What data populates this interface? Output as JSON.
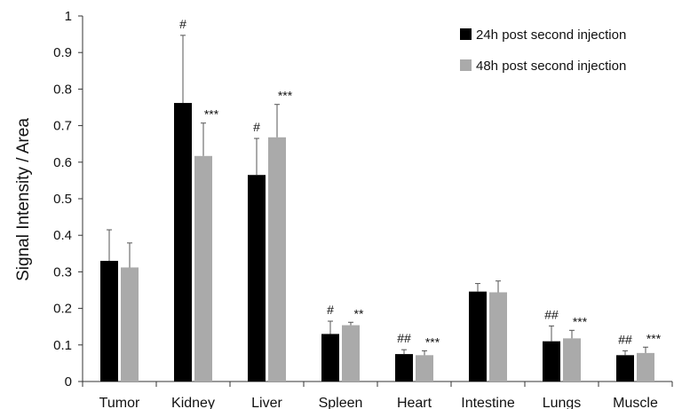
{
  "chart_data": {
    "type": "bar",
    "title": "",
    "xlabel": "",
    "ylabel": "Signal Intensity / Area",
    "ylim": [
      0,
      1
    ],
    "yticks": [
      "0",
      "0.1",
      "0.2",
      "0.3",
      "0.4",
      "0.5",
      "0.6",
      "0.7",
      "0.8",
      "0.9",
      "1"
    ],
    "grid": false,
    "legend_position": "top-right",
    "categories": [
      "Tumor",
      "Kidney",
      "Liver",
      "Spleen",
      "Heart",
      "Intestine",
      "Lungs",
      "Muscle"
    ],
    "series": [
      {
        "name": "24h post second injection",
        "color": "#000000",
        "values": [
          0.33,
          0.762,
          0.565,
          0.13,
          0.075,
          0.246,
          0.11,
          0.072
        ],
        "errors": [
          0.085,
          0.185,
          0.1,
          0.035,
          0.012,
          0.022,
          0.042,
          0.012
        ],
        "annotations": [
          "",
          "#",
          "#",
          "#",
          "##",
          "",
          "##",
          "##"
        ]
      },
      {
        "name": "48h post second injection",
        "color": "#aaaaaa",
        "values": [
          0.312,
          0.617,
          0.668,
          0.154,
          0.072,
          0.244,
          0.118,
          0.078
        ],
        "errors": [
          0.067,
          0.09,
          0.09,
          0.008,
          0.012,
          0.031,
          0.022,
          0.016
        ],
        "annotations": [
          "",
          "***",
          "***",
          "**",
          "***",
          "",
          "***",
          "***"
        ]
      }
    ]
  }
}
